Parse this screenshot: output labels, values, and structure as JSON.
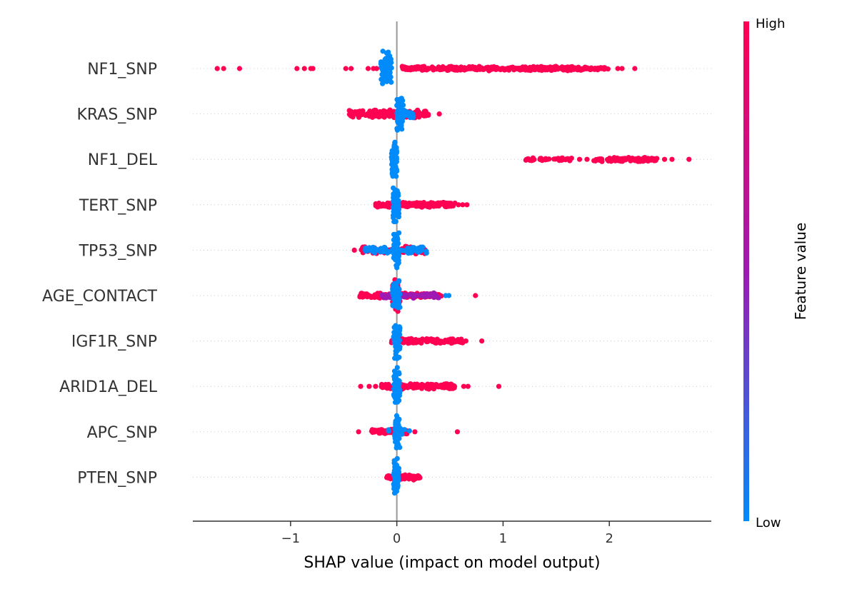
{
  "chart_data": {
    "type": "scatter",
    "subtype": "shap-beeswarm",
    "title": "",
    "xlabel": "SHAP value (impact on model output)",
    "xlim": [
      -1.92,
      2.96
    ],
    "xticks": [
      -1,
      0,
      1,
      2
    ],
    "xtick_labels": [
      "−1",
      "0",
      "1",
      "2"
    ],
    "zero_line": 0,
    "features": [
      {
        "name": "NF1_SNP",
        "low_clusters": [
          {
            "from": -0.15,
            "to": -0.05,
            "spread": 1.0,
            "count": 70
          }
        ],
        "high_clusters": [
          {
            "from": 0.05,
            "to": 1.75,
            "spread": 0.12,
            "count": 360
          },
          {
            "from": 1.75,
            "to": 2.0,
            "spread": 0.08,
            "count": 35
          }
        ],
        "high_points": [
          -1.69,
          -1.63,
          -1.48,
          -0.94,
          -0.87,
          -0.81,
          -0.79,
          -0.48,
          -0.43,
          -0.27,
          -0.22,
          -0.19,
          2.08,
          2.12,
          2.24
        ],
        "low_points": []
      },
      {
        "name": "KRAS_SNP",
        "low_clusters": [
          {
            "from": 0.0,
            "to": 0.06,
            "spread": 1.0,
            "count": 60
          },
          {
            "from": 0.06,
            "to": 0.18,
            "spread": 0.25,
            "count": 20
          }
        ],
        "high_clusters": [
          {
            "from": -0.45,
            "to": 0.3,
            "spread": 0.22,
            "count": 170
          }
        ],
        "high_points": [
          0.4
        ],
        "low_points": []
      },
      {
        "name": "NF1_DEL",
        "low_clusters": [
          {
            "from": -0.05,
            "to": 0.0,
            "spread": 1.0,
            "count": 70
          }
        ],
        "high_clusters": [
          {
            "from": 1.2,
            "to": 1.65,
            "spread": 0.08,
            "count": 50
          },
          {
            "from": 1.85,
            "to": 2.45,
            "spread": 0.12,
            "count": 120
          }
        ],
        "high_points": [
          1.72,
          1.79,
          2.52,
          2.59,
          2.75
        ],
        "low_points": []
      },
      {
        "name": "TERT_SNP",
        "low_clusters": [
          {
            "from": -0.04,
            "to": 0.02,
            "spread": 1.0,
            "count": 60
          }
        ],
        "high_clusters": [
          {
            "from": -0.2,
            "to": 0.55,
            "spread": 0.15,
            "count": 150
          }
        ],
        "high_points": [
          0.58,
          0.62,
          0.66
        ],
        "low_points": []
      },
      {
        "name": "TP53_SNP",
        "low_clusters": [
          {
            "from": -0.03,
            "to": 0.02,
            "spread": 1.0,
            "count": 55
          },
          {
            "from": -0.3,
            "to": 0.28,
            "spread": 0.2,
            "count": 70
          }
        ],
        "high_clusters": [
          {
            "from": -0.35,
            "to": 0.28,
            "spread": 0.22,
            "count": 120
          }
        ],
        "high_points": [
          -0.4
        ],
        "low_points": []
      },
      {
        "name": "AGE_CONTACT",
        "low_clusters": [
          {
            "from": -0.04,
            "to": 0.03,
            "spread": 1.0,
            "count": 50
          }
        ],
        "high_clusters": [
          {
            "from": -0.04,
            "to": 0.03,
            "spread": 1.0,
            "count": 40
          },
          {
            "from": -0.35,
            "to": 0.42,
            "spread": 0.15,
            "count": 140
          }
        ],
        "mid_clusters": [
          {
            "from": -0.15,
            "to": 0.4,
            "spread": 0.15,
            "count": 60
          }
        ],
        "high_points": [
          0.74
        ],
        "low_points": [
          0.46,
          0.49
        ]
      },
      {
        "name": "IGF1R_SNP",
        "low_clusters": [
          {
            "from": -0.03,
            "to": 0.03,
            "spread": 1.0,
            "count": 60
          }
        ],
        "high_clusters": [
          {
            "from": -0.05,
            "to": 0.62,
            "spread": 0.15,
            "count": 160
          }
        ],
        "high_points": [
          0.65,
          0.8
        ],
        "low_points": []
      },
      {
        "name": "ARID1A_DEL",
        "low_clusters": [
          {
            "from": -0.03,
            "to": 0.03,
            "spread": 1.0,
            "count": 60
          }
        ],
        "high_clusters": [
          {
            "from": -0.15,
            "to": 0.55,
            "spread": 0.15,
            "count": 170
          }
        ],
        "high_points": [
          -0.34,
          -0.26,
          -0.2,
          0.63,
          0.67,
          0.96
        ],
        "low_points": []
      },
      {
        "name": "APC_SNP",
        "low_clusters": [
          {
            "from": -0.02,
            "to": 0.03,
            "spread": 1.0,
            "count": 55
          },
          {
            "from": -0.08,
            "to": 0.12,
            "spread": 0.2,
            "count": 15
          }
        ],
        "high_clusters": [
          {
            "from": -0.24,
            "to": 0.1,
            "spread": 0.15,
            "count": 70
          }
        ],
        "high_points": [
          -0.36,
          0.17,
          0.57
        ],
        "low_points": []
      },
      {
        "name": "PTEN_SNP",
        "low_clusters": [
          {
            "from": -0.03,
            "to": 0.02,
            "spread": 1.0,
            "count": 55
          }
        ],
        "high_clusters": [
          {
            "from": -0.1,
            "to": 0.22,
            "spread": 0.15,
            "count": 90
          }
        ],
        "high_points": [],
        "low_points": []
      }
    ],
    "colorbar": {
      "label": "Feature value",
      "high_label": "High",
      "low_label": "Low",
      "low_color": "#008bfb",
      "mid_color": "#9e1ab2",
      "high_color": "#ff0052"
    }
  }
}
